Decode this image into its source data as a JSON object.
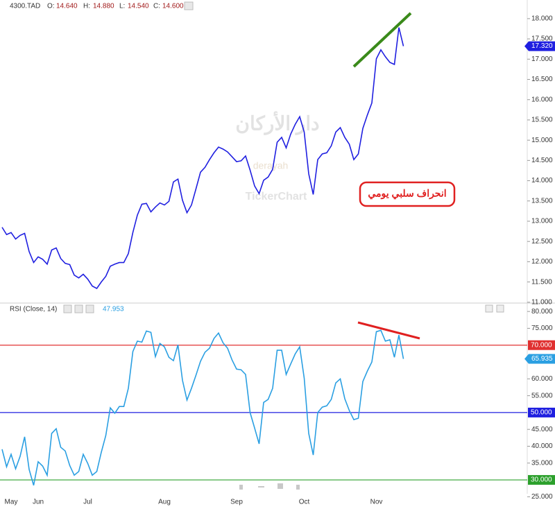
{
  "chart_data": [
    {
      "type": "line",
      "symbol": "4300.TAD",
      "ohlc": [
        {
          "name": "O:",
          "price": {
            "value": 14.64,
            "label": "14.640"
          }
        },
        {
          "name": "H:",
          "price": {
            "value": 14.88,
            "label": "14.880"
          }
        },
        {
          "name": "L:",
          "price": {
            "value": 14.54,
            "label": "14.540"
          }
        },
        {
          "name": "C:",
          "price": {
            "value": 14.6,
            "label": "14.600"
          }
        }
      ],
      "series": [
        {
          "color": "#1f1fe0",
          "values": [
            12.85,
            12.67,
            12.72,
            12.56,
            12.65,
            12.7,
            12.25,
            11.98,
            12.12,
            12.06,
            11.94,
            12.29,
            12.34,
            12.08,
            11.96,
            11.93,
            11.67,
            11.6,
            11.69,
            11.57,
            11.4,
            11.34,
            11.5,
            11.64,
            11.89,
            11.94,
            11.98,
            11.98,
            12.2,
            12.72,
            13.15,
            13.42,
            13.44,
            13.23,
            13.35,
            13.45,
            13.4,
            13.49,
            13.97,
            14.04,
            13.52,
            13.21,
            13.4,
            13.8,
            14.21,
            14.33,
            14.52,
            14.69,
            14.83,
            14.78,
            14.71,
            14.59,
            14.47,
            14.49,
            14.61,
            14.26,
            13.87,
            13.68,
            14.01,
            14.09,
            14.28,
            14.95,
            15.07,
            14.81,
            15.15,
            15.39,
            15.58,
            15.2,
            14.17,
            13.66,
            14.52,
            14.66,
            14.69,
            14.86,
            15.2,
            15.31,
            15.07,
            14.9,
            14.52,
            14.66,
            15.29,
            15.62,
            15.92,
            17.01,
            17.23,
            17.06,
            16.92,
            16.87,
            17.78,
            17.32
          ]
        }
      ],
      "ylim": [
        10.98,
        18.46
      ],
      "yticks": [
        {
          "value": 11,
          "label": "11.000"
        },
        {
          "value": 11.5,
          "label": "11.500"
        },
        {
          "value": 12,
          "label": "12.000"
        },
        {
          "value": 12.5,
          "label": "12.500"
        },
        {
          "value": 13,
          "label": "13.000"
        },
        {
          "value": 13.5,
          "label": "13.500"
        },
        {
          "value": 14,
          "label": "14.000"
        },
        {
          "value": 14.5,
          "label": "14.500"
        },
        {
          "value": 15,
          "label": "15.000"
        },
        {
          "value": 15.5,
          "label": "15.500"
        },
        {
          "value": 16,
          "label": "16.000"
        },
        {
          "value": 16.5,
          "label": "16.500"
        },
        {
          "value": 17,
          "label": "17.000"
        },
        {
          "value": 17.5,
          "label": "17.500"
        },
        {
          "value": 18,
          "label": "18.000"
        }
      ],
      "last_label": {
        "value": 17.32,
        "label": "17.320"
      },
      "annotation": "انحراف سلبي يومي",
      "watermark": [
        "دار الأركان",
        "derayah",
        "TickerChart"
      ]
    },
    {
      "type": "line",
      "title": "RSI (Close, 14)",
      "current": 47.953,
      "categories": [
        null,
        null,
        "May",
        null,
        null,
        null,
        null,
        null,
        "Jun",
        null,
        null,
        null,
        null,
        null,
        null,
        null,
        null,
        null,
        null,
        "Jul",
        null,
        null,
        null,
        null,
        null,
        null,
        null,
        null,
        null,
        null,
        null,
        null,
        null,
        null,
        null,
        null,
        "Aug",
        null,
        null,
        null,
        null,
        null,
        null,
        null,
        null,
        null,
        null,
        null,
        null,
        null,
        null,
        null,
        "Sep",
        null,
        null,
        null,
        null,
        null,
        null,
        null,
        null,
        null,
        null,
        null,
        null,
        null,
        null,
        "Oct",
        null,
        null,
        null,
        null,
        null,
        null,
        null,
        null,
        null,
        null,
        null,
        null,
        null,
        null,
        null,
        "Nov",
        null,
        null,
        null,
        null,
        null,
        null
      ],
      "series": [
        {
          "color": "#2a9fe2",
          "values": [
            39.1,
            33.9,
            37.6,
            33.3,
            37.0,
            42.8,
            33.1,
            28.4,
            35.4,
            34.1,
            31.4,
            43.8,
            45.2,
            39.7,
            38.6,
            34.3,
            31.4,
            32.5,
            37.6,
            34.9,
            31.4,
            32.5,
            38.2,
            43.2,
            51.4,
            49.8,
            51.8,
            51.8,
            57.2,
            68.1,
            71.2,
            70.9,
            74.2,
            73.8,
            66.6,
            70.5,
            69.5,
            66.4,
            65.4,
            70.1,
            59.6,
            53.7,
            57.2,
            61.1,
            65.2,
            67.9,
            69.1,
            72.0,
            73.6,
            70.7,
            69.1,
            65.6,
            62.9,
            62.7,
            61.3,
            50.0,
            45.4,
            40.7,
            53.0,
            53.9,
            57.2,
            68.5,
            68.5,
            61.3,
            64.4,
            67.4,
            69.5,
            60.2,
            43.8,
            37.4,
            50.0,
            51.6,
            52.0,
            53.9,
            58.8,
            60.0,
            54.1,
            50.6,
            47.9,
            48.3,
            59.2,
            62.3,
            65.0,
            74.0,
            74.4,
            71.2,
            71.6,
            66.4,
            73.0,
            65.935
          ]
        }
      ],
      "ylim": [
        25.9,
        82.5
      ],
      "yticks": [
        {
          "value": 25,
          "label": "25.000"
        },
        {
          "value": 35,
          "label": "35.000"
        },
        {
          "value": 40,
          "label": "40.000"
        },
        {
          "value": 45,
          "label": "45.000"
        },
        {
          "value": 55,
          "label": "55.000"
        },
        {
          "value": 60,
          "label": "60.000"
        },
        {
          "value": 65,
          "label": "65.000"
        },
        {
          "value": 75,
          "label": "75.000"
        },
        {
          "value": 80,
          "label": "80.000"
        }
      ],
      "hlines": [
        {
          "value": 70,
          "label": "70.000",
          "color": "#e03030"
        },
        {
          "value": 50,
          "label": "50.000",
          "color": "#1f1fe0"
        },
        {
          "value": 30,
          "label": "30.000",
          "color": "#2ca02c"
        }
      ],
      "last_label": {
        "value": 65.935,
        "label": "65.935"
      }
    }
  ]
}
